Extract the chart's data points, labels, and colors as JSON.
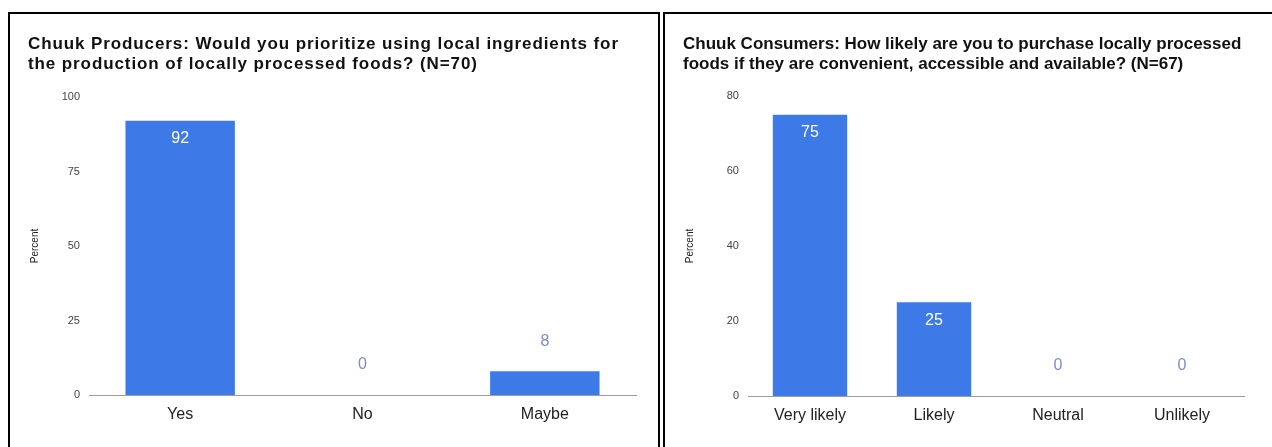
{
  "chart_data": [
    {
      "type": "bar",
      "title": "Chuuk Producers: Would you prioritize using local ingredients for the production of locally processed foods? (N=70)",
      "ylabel": "Percent",
      "categories": [
        "Yes",
        "No",
        "Maybe"
      ],
      "values": [
        92,
        0,
        8
      ],
      "color": "#3d7ae8",
      "ylim": [
        0,
        100
      ],
      "yticks": [
        0,
        25,
        50,
        75,
        100
      ],
      "data_labels": true
    },
    {
      "type": "bar",
      "title": "Chuuk Consumers: How likely are you to purchase locally processed foods if they are convenient, accessible and available? (N=67)",
      "ylabel": "Percent",
      "categories": [
        "Very likely",
        "Likely",
        "Neutral",
        "Unlikely"
      ],
      "values": [
        75,
        25,
        0,
        0
      ],
      "color": "#3d7ae8",
      "ylim": [
        0,
        80
      ],
      "yticks": [
        0,
        20,
        40,
        60,
        80
      ],
      "data_labels": true
    }
  ]
}
